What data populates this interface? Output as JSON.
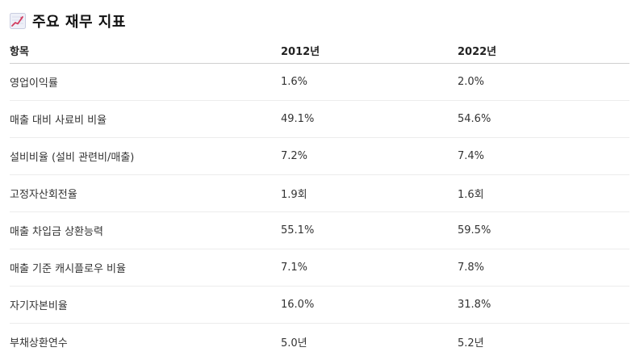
{
  "header": {
    "icon": "chart-increasing-icon",
    "title": "주요 재무 지표"
  },
  "table": {
    "columns": [
      "항목",
      "2012년",
      "2022년"
    ],
    "rows": [
      {
        "item": "영업이익률",
        "y2012": "1.6%",
        "y2022": "2.0%"
      },
      {
        "item": "매출 대비 사료비 비율",
        "y2012": "49.1%",
        "y2022": "54.6%"
      },
      {
        "item": "설비비율 (설비 관련비/매출)",
        "y2012": "7.2%",
        "y2022": "7.4%"
      },
      {
        "item": "고정자산회전율",
        "y2012": "1.9회",
        "y2022": "1.6회"
      },
      {
        "item": "매출 차입금 상환능력",
        "y2012": "55.1%",
        "y2022": "59.5%"
      },
      {
        "item": "매출 기준 캐시플로우 비율",
        "y2012": "7.1%",
        "y2022": "7.8%"
      },
      {
        "item": "자기자본비율",
        "y2012": "16.0%",
        "y2022": "31.8%"
      },
      {
        "item": "부채상환연수",
        "y2012": "5.0년",
        "y2022": "5.2년"
      }
    ]
  }
}
